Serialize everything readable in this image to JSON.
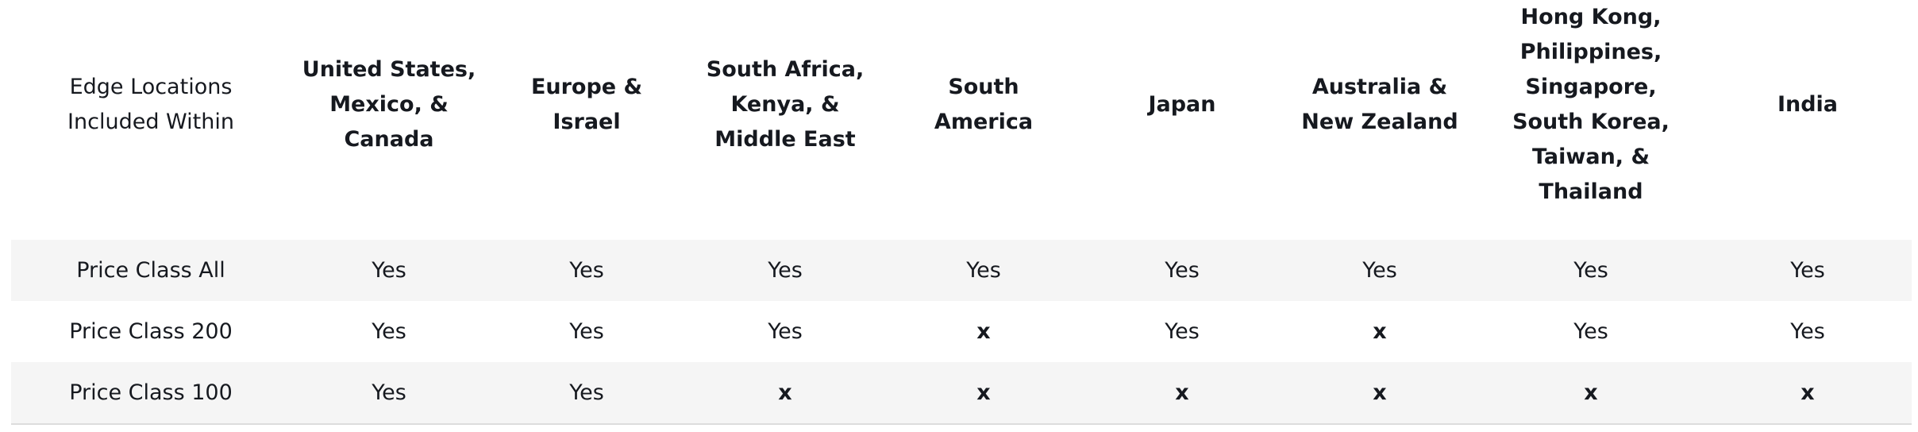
{
  "table": {
    "headers": [
      "Edge Locations Included Within",
      "United States, Mexico, & Canada",
      "Europe & Israel",
      "South Africa, Kenya, & Middle East",
      "South America",
      "Japan",
      "Australia & New Zealand",
      "Hong Kong, Philippines, Singapore, South Korea, Taiwan, & Thailand",
      "India"
    ],
    "rows": [
      {
        "label": "Price Class All",
        "cells": [
          "Yes",
          "Yes",
          "Yes",
          "Yes",
          "Yes",
          "Yes",
          "Yes",
          "Yes"
        ]
      },
      {
        "label": "Price Class 200",
        "cells": [
          "Yes",
          "Yes",
          "Yes",
          "x",
          "Yes",
          "x",
          "Yes",
          "Yes"
        ]
      },
      {
        "label": "Price Class 100",
        "cells": [
          "Yes",
          "Yes",
          "x",
          "x",
          "x",
          "x",
          "x",
          "x"
        ]
      }
    ]
  }
}
